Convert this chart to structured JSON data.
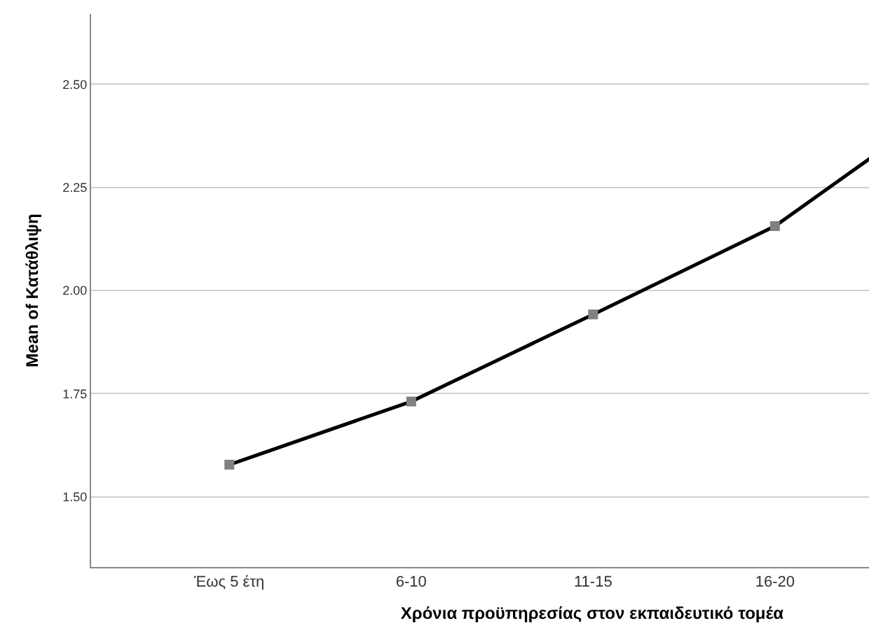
{
  "chart_data": {
    "type": "line",
    "categories": [
      "Έως 5 έτη",
      "6-10",
      "11-15",
      "16-20",
      null
    ],
    "series": [
      {
        "color": "#000000",
        "values": [
          1.578,
          1.731,
          1.942,
          2.156,
          2.47
        ]
      }
    ],
    "xlabel": "Χρόνια προϋπηρεσίας στον εκπαιδευτικό τομέα",
    "ylabel": "Mean of Κατάθλιψη",
    "ylim": [
      1.33,
      2.67
    ],
    "yticks": [
      {
        "value": 1.5,
        "label": "1.50"
      },
      {
        "value": 1.75,
        "label": "1.75"
      },
      {
        "value": 2.0,
        "label": "2.00"
      },
      {
        "value": 2.25,
        "label": "2.25"
      },
      {
        "value": 2.5,
        "label": "2.50"
      }
    ],
    "grid": "y",
    "marker": "square",
    "line_style": "solid"
  }
}
